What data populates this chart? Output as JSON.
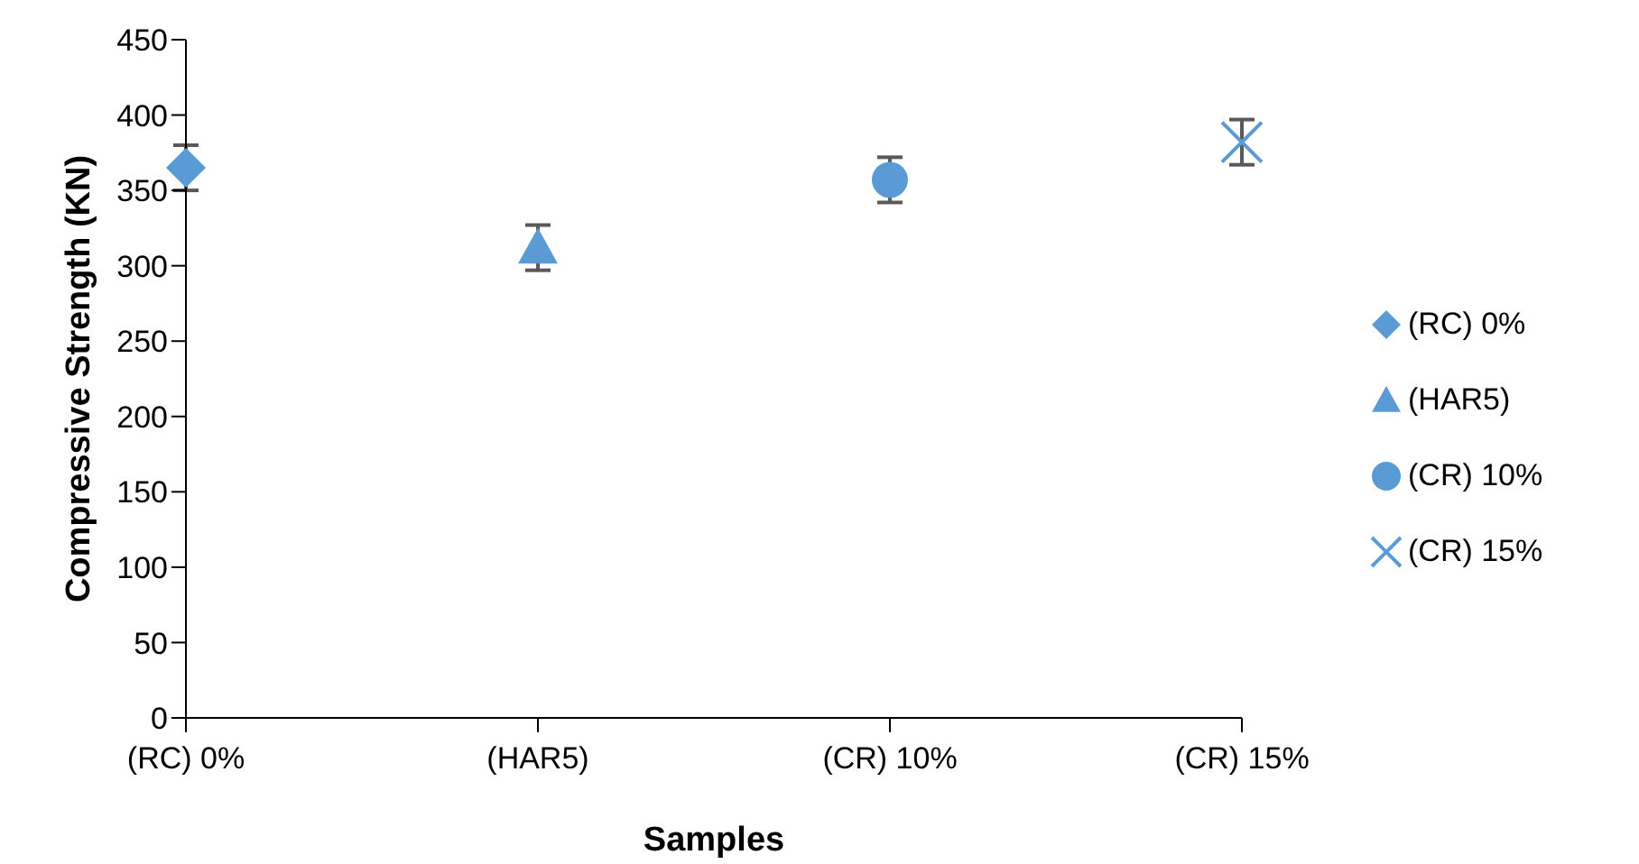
{
  "chart_data": {
    "type": "scatter",
    "xlabel": "Samples",
    "ylabel": "Compressive Strength (KN)",
    "categories": [
      "(RC) 0%",
      "(HAR5)",
      "(CR) 10%",
      "(CR) 15%"
    ],
    "ylim": [
      0,
      450
    ],
    "yticks": [
      0,
      50,
      100,
      150,
      200,
      250,
      300,
      350,
      400,
      450
    ],
    "grid": false,
    "legend": "right",
    "series": [
      {
        "name": "(RC) 0%",
        "color": "#5b9bd5",
        "marker": "diamond",
        "values": [
          365,
          null,
          null,
          null
        ],
        "errors": [
          15,
          null,
          null,
          null
        ]
      },
      {
        "name": "(HAR5)",
        "color": "#5b9bd5",
        "marker": "triangle",
        "values": [
          null,
          312,
          null,
          null
        ],
        "errors": [
          null,
          15,
          null,
          null
        ]
      },
      {
        "name": "(CR) 10%",
        "color": "#5b9bd5",
        "marker": "circle",
        "values": [
          null,
          null,
          357,
          null
        ],
        "errors": [
          null,
          null,
          15,
          null
        ]
      },
      {
        "name": "(CR) 15%",
        "color": "#5b9bd5",
        "marker": "cross",
        "values": [
          null,
          null,
          null,
          382
        ],
        "errors": [
          null,
          null,
          null,
          15
        ]
      }
    ]
  }
}
